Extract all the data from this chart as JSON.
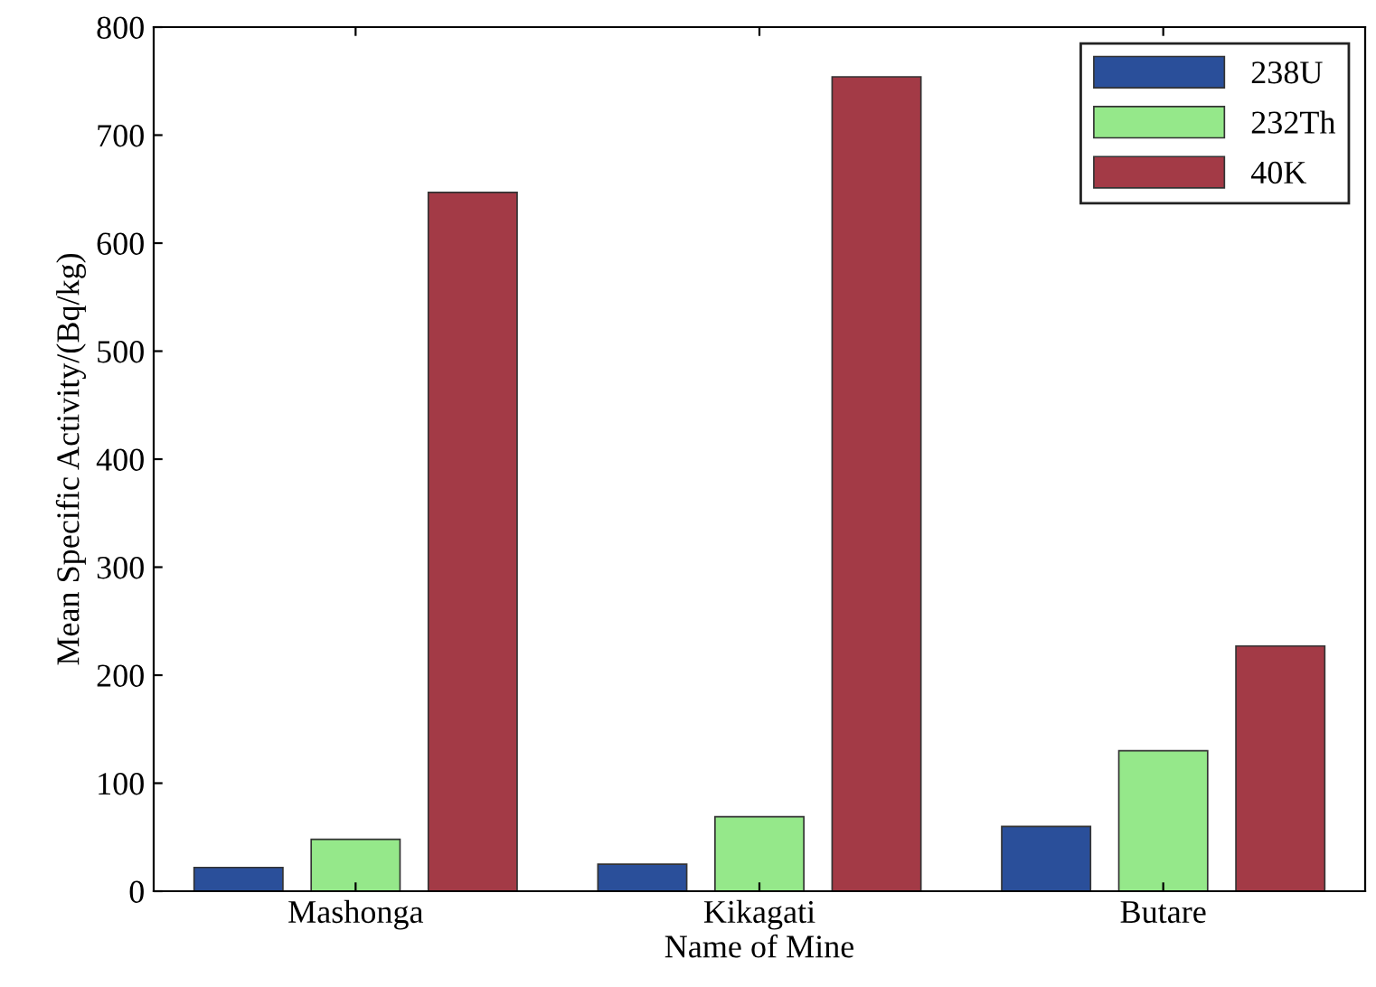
{
  "chart_data": {
    "type": "bar",
    "xlabel": "Name of Mine",
    "ylabel": "Mean Specific Activity/(Bq/kg)",
    "categories": [
      "Mashonga",
      "Kikagati",
      "Butare"
    ],
    "series": [
      {
        "name": "238U",
        "color": "#2a4f9a",
        "values": [
          22,
          25,
          60
        ]
      },
      {
        "name": "232Th",
        "color": "#95e88a",
        "values": [
          48,
          69,
          130
        ]
      },
      {
        "name": "40K",
        "color": "#a33a46",
        "values": [
          647,
          754,
          227
        ]
      }
    ],
    "ylim": [
      0,
      800
    ],
    "yticks": [
      0,
      100,
      200,
      300,
      400,
      500,
      600,
      700,
      800
    ],
    "grid": false,
    "legend": "top right"
  }
}
